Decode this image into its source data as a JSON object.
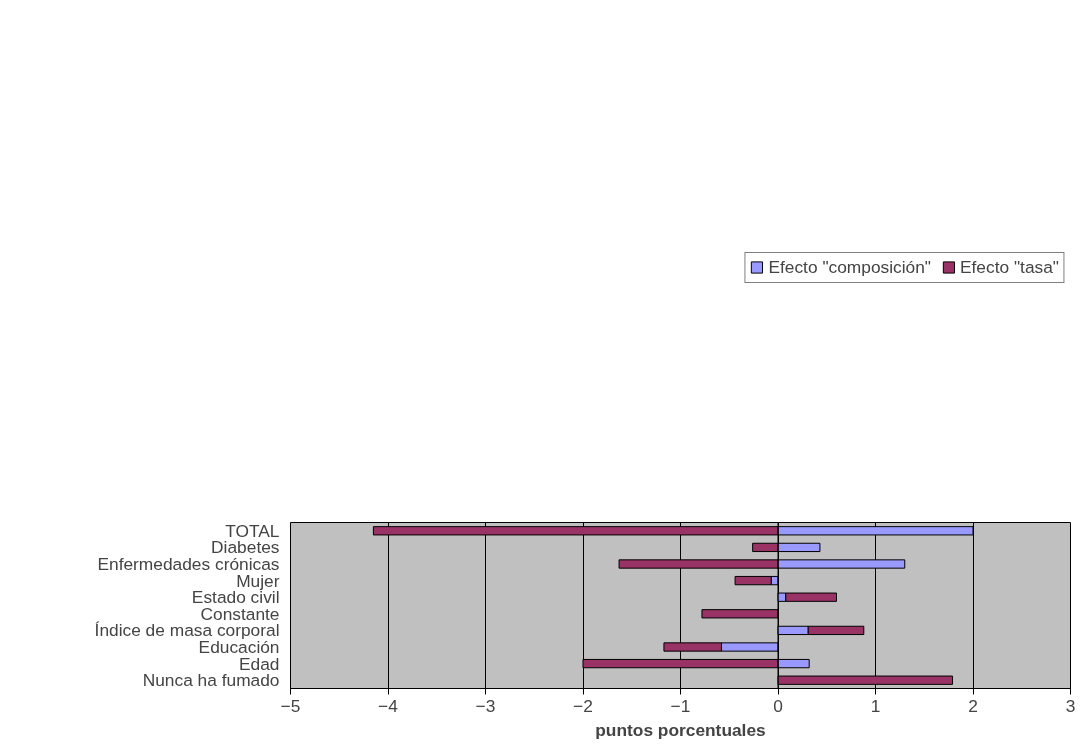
{
  "chart_data": {
    "type": "bar",
    "orientation": "horizontal",
    "stacked": true,
    "xlabel": "puntos porcentuales",
    "categories": [
      "TOTAL",
      "Diabetes",
      "Enfermedades crónicas",
      "Mujer",
      "Estado civil",
      "Constante",
      "Índice de masa corporal",
      "Educación",
      "Edad",
      "Nunca ha fumado"
    ],
    "series": [
      {
        "name": "Efecto \"composición\"",
        "color": "#9999ff",
        "values": [
          2.0,
          0.43,
          1.3,
          -0.07,
          0.08,
          null,
          0.31,
          -0.58,
          0.32,
          null
        ]
      },
      {
        "name": "Efecto \"tasa\"",
        "color": "#993366",
        "values": [
          -4.15,
          -0.26,
          -1.63,
          -0.37,
          0.52,
          -0.78,
          0.57,
          -0.59,
          -2.0,
          1.79
        ]
      }
    ],
    "xlim": [
      -5,
      3
    ],
    "xticks": [
      -5,
      -4,
      -3,
      -2,
      -1,
      0,
      1,
      2,
      3
    ],
    "grid": "x",
    "legend": "top"
  }
}
